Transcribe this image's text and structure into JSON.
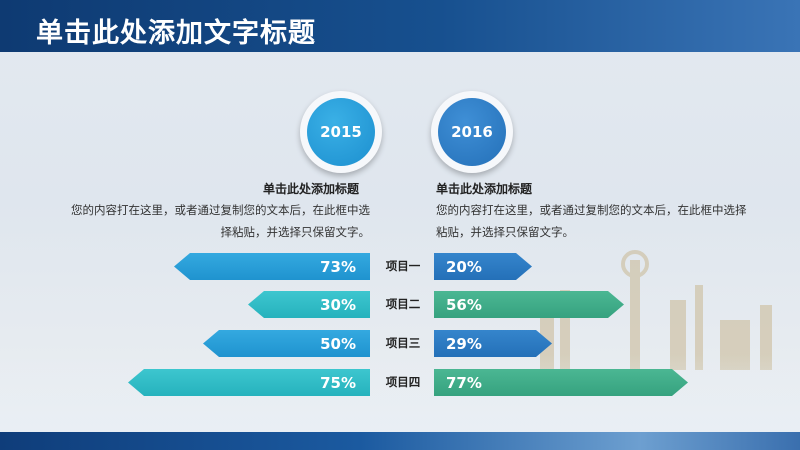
{
  "header": {
    "title": "单击此处添加文字标题"
  },
  "left": {
    "year": "2015",
    "title": "单击此处添加标题",
    "body": "您的内容打在这里，或者通过复制您的文本后，在此框中选择粘贴，并选择只保留文字。"
  },
  "right": {
    "year": "2016",
    "title": "单击此处添加标题",
    "body": "您的内容打在这里，或者通过复制您的文本后，在此框中选择粘贴，并选择只保留文字。"
  },
  "rows": [
    {
      "label": "项目一",
      "left_value": "73%",
      "right_value": "20%",
      "left_color": "#1f93cf",
      "right_color": "#2470b8"
    },
    {
      "label": "项目二",
      "left_value": "30%",
      "right_value": "56%",
      "left_color": "#26b2bd",
      "right_color": "#36a27f"
    },
    {
      "label": "项目三",
      "left_value": "50%",
      "right_value": "29%",
      "left_color": "#1f93cf",
      "right_color": "#2470b8"
    },
    {
      "label": "项目四",
      "left_value": "75%",
      "right_value": "77%",
      "left_color": "#26b2bd",
      "right_color": "#36a27f"
    }
  ],
  "colors": {
    "header_bg": "#17508f",
    "badge_2015": "#1c8fcf",
    "badge_2016": "#2470b8"
  }
}
